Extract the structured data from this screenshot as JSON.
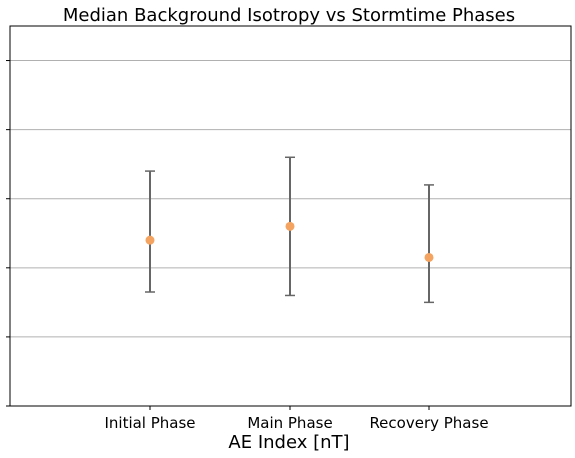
{
  "chart_data": {
    "type": "scatter",
    "title": "Median Background Isotropy vs Stormtime Phases",
    "xlabel": "AE Index [nT]",
    "ylabel": "",
    "categories": [
      "Initial Phase",
      "Main Phase",
      "Recovery Phase"
    ],
    "values": [
      0.48,
      0.52,
      0.43
    ],
    "error_low": [
      0.33,
      0.32,
      0.3
    ],
    "error_high": [
      0.68,
      0.72,
      0.64
    ],
    "ylim": [
      0,
      1.1
    ],
    "yticks": [
      0,
      0.2,
      0.4,
      0.6,
      0.8,
      1.0
    ],
    "grid": "y",
    "colors": {
      "marker": "#f4a460",
      "errorbar": "#666666",
      "grid": "#b0b0b0"
    }
  }
}
